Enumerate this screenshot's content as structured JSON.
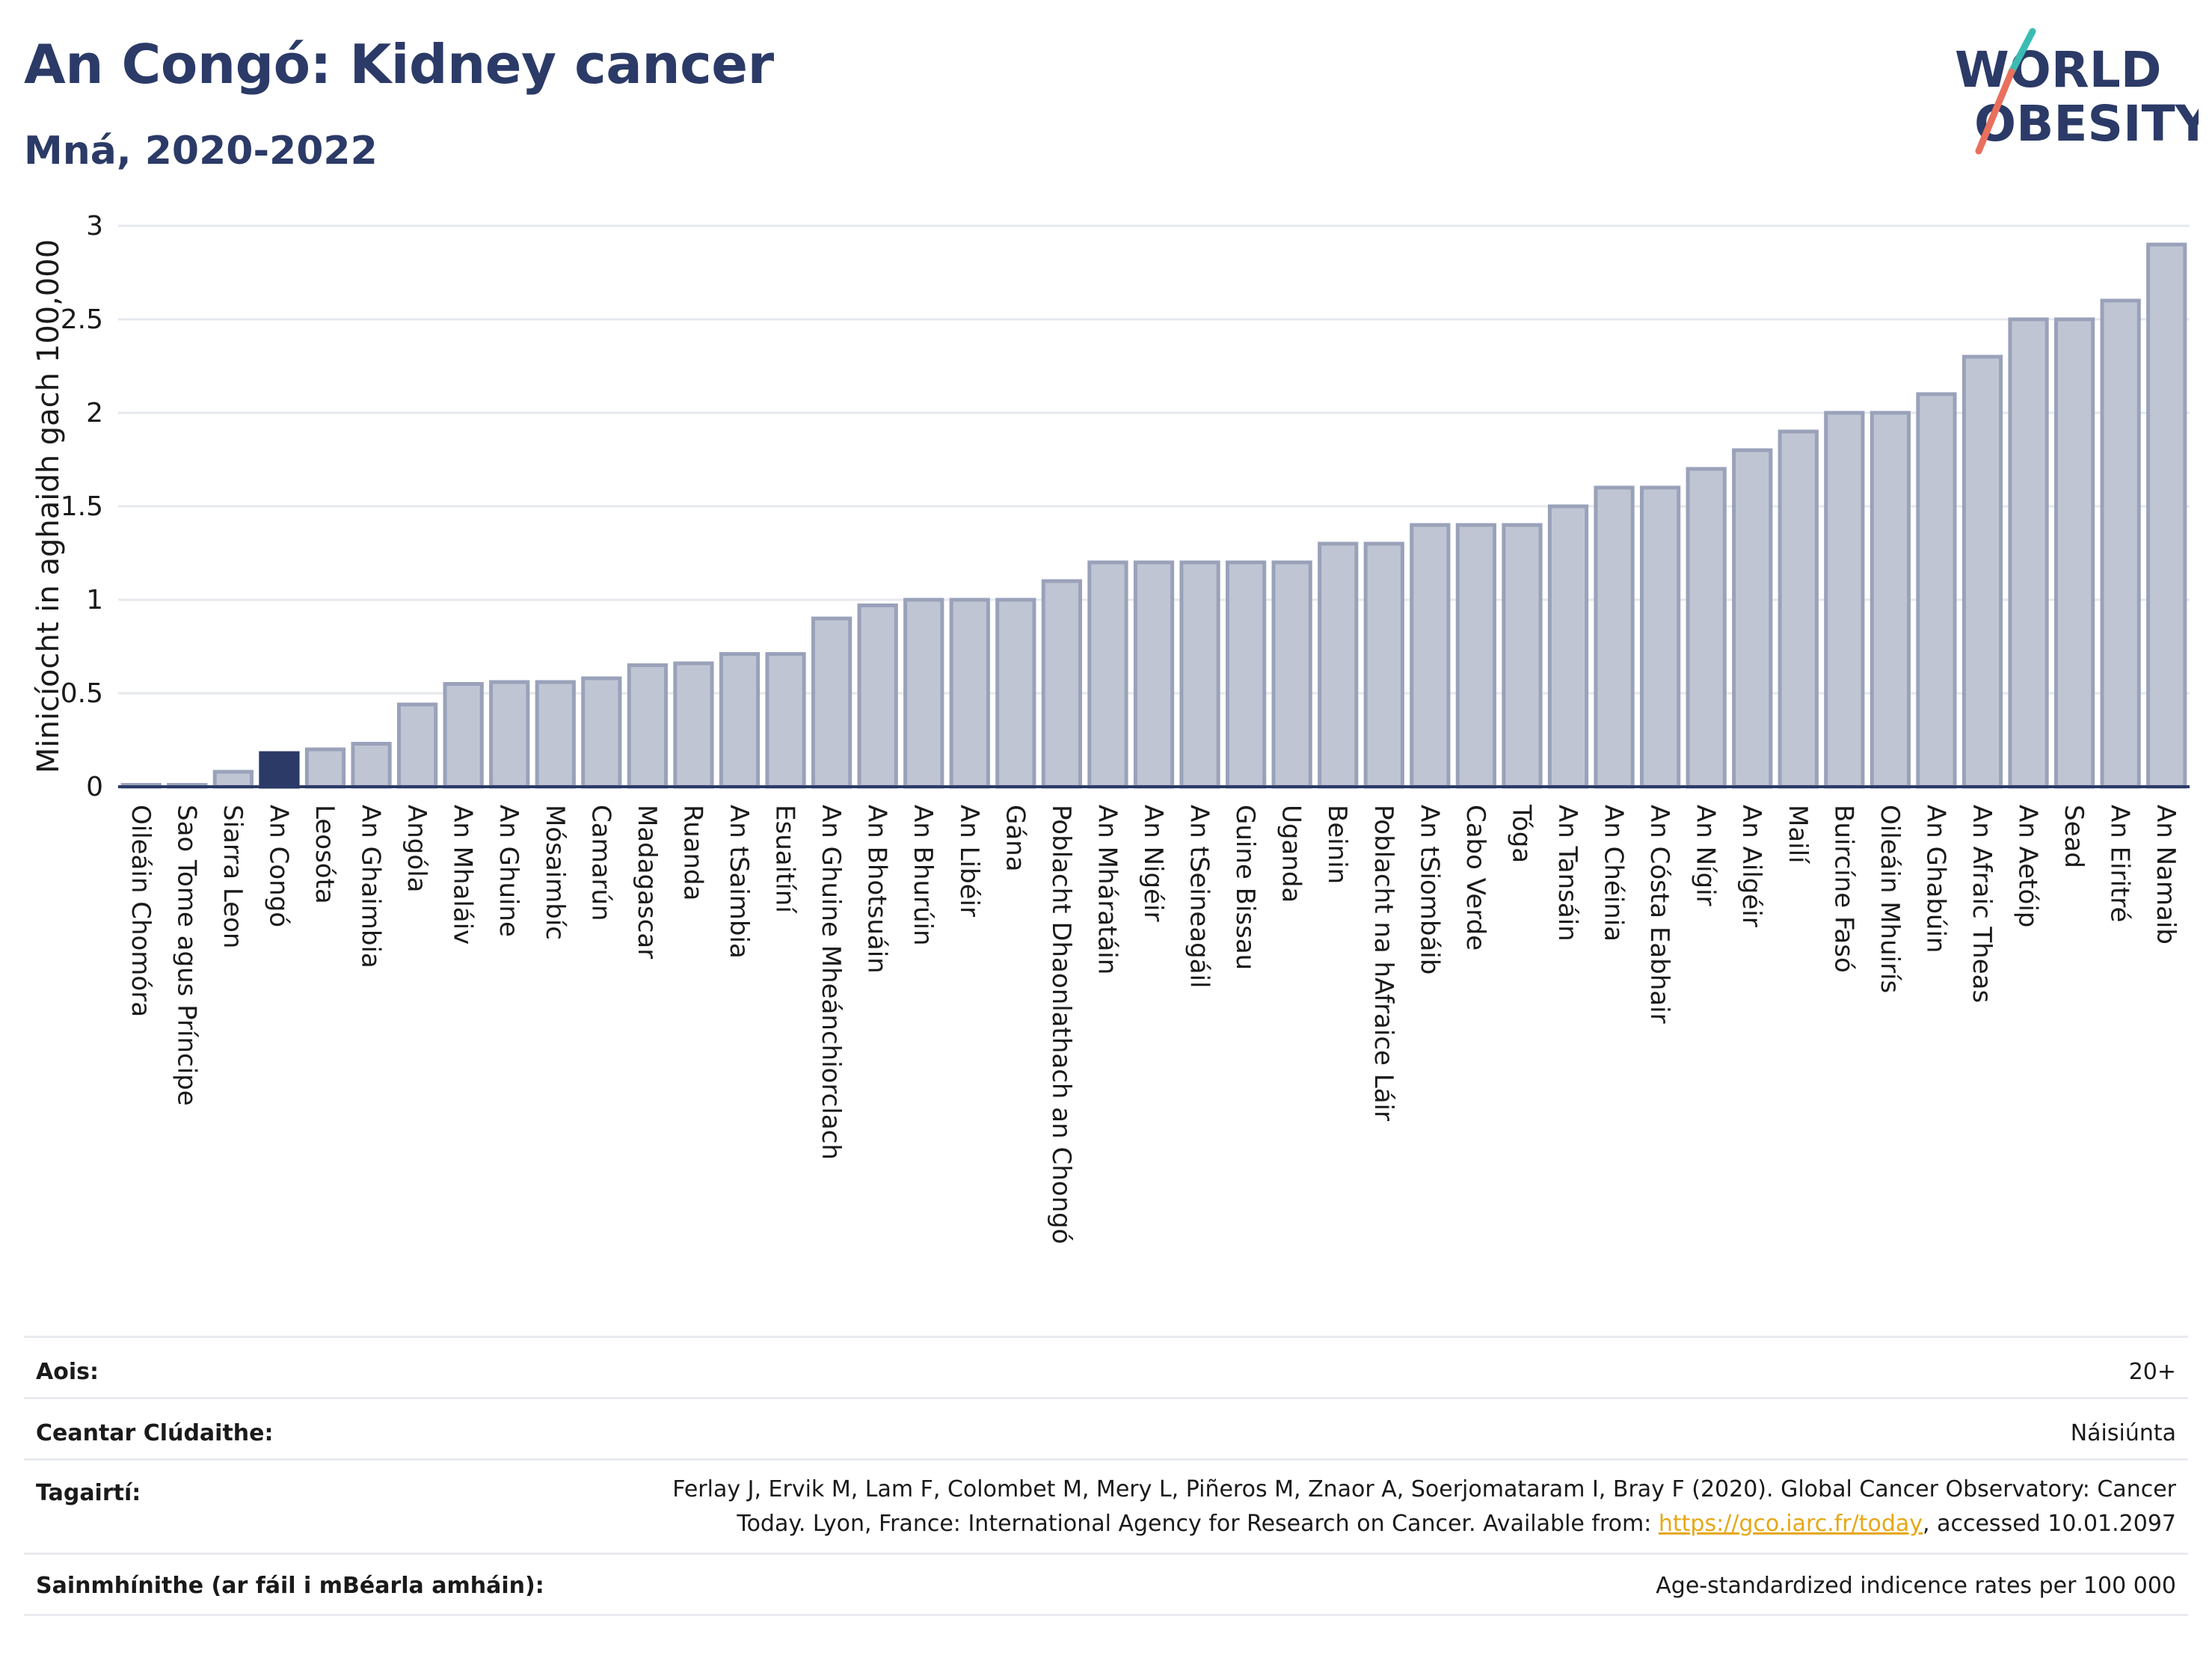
{
  "header": {
    "title": "An Congó: Kidney cancer",
    "subtitle": "Mná, 2020-2022"
  },
  "logo": {
    "line1": "WORLD",
    "line2": "OBESITY"
  },
  "colors": {
    "bar": "#c0c5d4",
    "bar_border": "#9aa2ba",
    "highlight": "#2b3a67",
    "text": "#2b3a67"
  },
  "chart_data": {
    "type": "bar",
    "ylabel": "Minicíocht in aghaidh gach 100,000",
    "ylim": [
      0,
      3
    ],
    "yticks": [
      "0",
      "0.5",
      "1",
      "1.5",
      "2",
      "2.5",
      "3"
    ],
    "highlight": "An Congó",
    "categories": [
      "Oileáin Chomóra",
      "Sao Tome agus Príncipe",
      "Siarra Leon",
      "An Congó",
      "Leosóta",
      "An Ghaimbia",
      "Angóla",
      "An Mhaláiv",
      "An Ghuine",
      "Mósaimbíc",
      "Camarún",
      "Madagascar",
      "Ruanda",
      "An tSaimbia",
      "Esuaitíní",
      "An Ghuine Mheánchiorclach",
      "An Bhotsuáin",
      "An Bhurúin",
      "An Libéir",
      "Gána",
      "Poblacht Dhaonlathach an Chongó",
      "An Mháratáin",
      "An Nigéir",
      "An tSeineagáil",
      "Guine Bissau",
      "Uganda",
      "Beinin",
      "Poblacht na hAfraice Láir",
      "An tSiombáib",
      "Cabo Verde",
      "Tóga",
      "An Tansáin",
      "An Chéinia",
      "An Cósta Eabhair",
      "An Nígir",
      "An Ailgéir",
      "Mailí",
      "Buircíne Fasó",
      "Oileáin Mhuirís",
      "An Ghabúin",
      "An Afraic Theas",
      "An Aetóip",
      "Sead",
      "An Eiritré",
      "An Namaib"
    ],
    "values": [
      0.01,
      0.01,
      0.08,
      0.18,
      0.2,
      0.23,
      0.44,
      0.55,
      0.56,
      0.56,
      0.58,
      0.65,
      0.66,
      0.71,
      0.71,
      0.9,
      0.97,
      1.0,
      1.0,
      1.0,
      1.1,
      1.2,
      1.2,
      1.2,
      1.2,
      1.2,
      1.3,
      1.3,
      1.4,
      1.4,
      1.4,
      1.5,
      1.6,
      1.6,
      1.7,
      1.8,
      1.9,
      2.0,
      2.0,
      2.1,
      2.3,
      2.5,
      2.5,
      2.6,
      2.9
    ]
  },
  "info": {
    "age_label": "Aois:",
    "age_value": "20+",
    "coverage_label": "Ceantar Clúdaithe:",
    "coverage_value": "Náisiúnta",
    "references_label": "Tagairtí:",
    "references_line1": "Ferlay J, Ervik M, Lam F, Colombet M, Mery L, Piñeros M, Znaor A, Soerjomataram I, Bray F (2020). Global Cancer Observatory: Cancer",
    "references_line2_pre": "Today. Lyon, France: International Agency for Research on Cancer. Available from: ",
    "references_link": "https://gco.iarc.fr/today",
    "references_line2_post": ", accessed 10.01.2097",
    "definitions_label": "Sainmhínithe (ar fáil i mBéarla amháin):",
    "definitions_value": "Age-standardized indicence rates per 100 000"
  }
}
